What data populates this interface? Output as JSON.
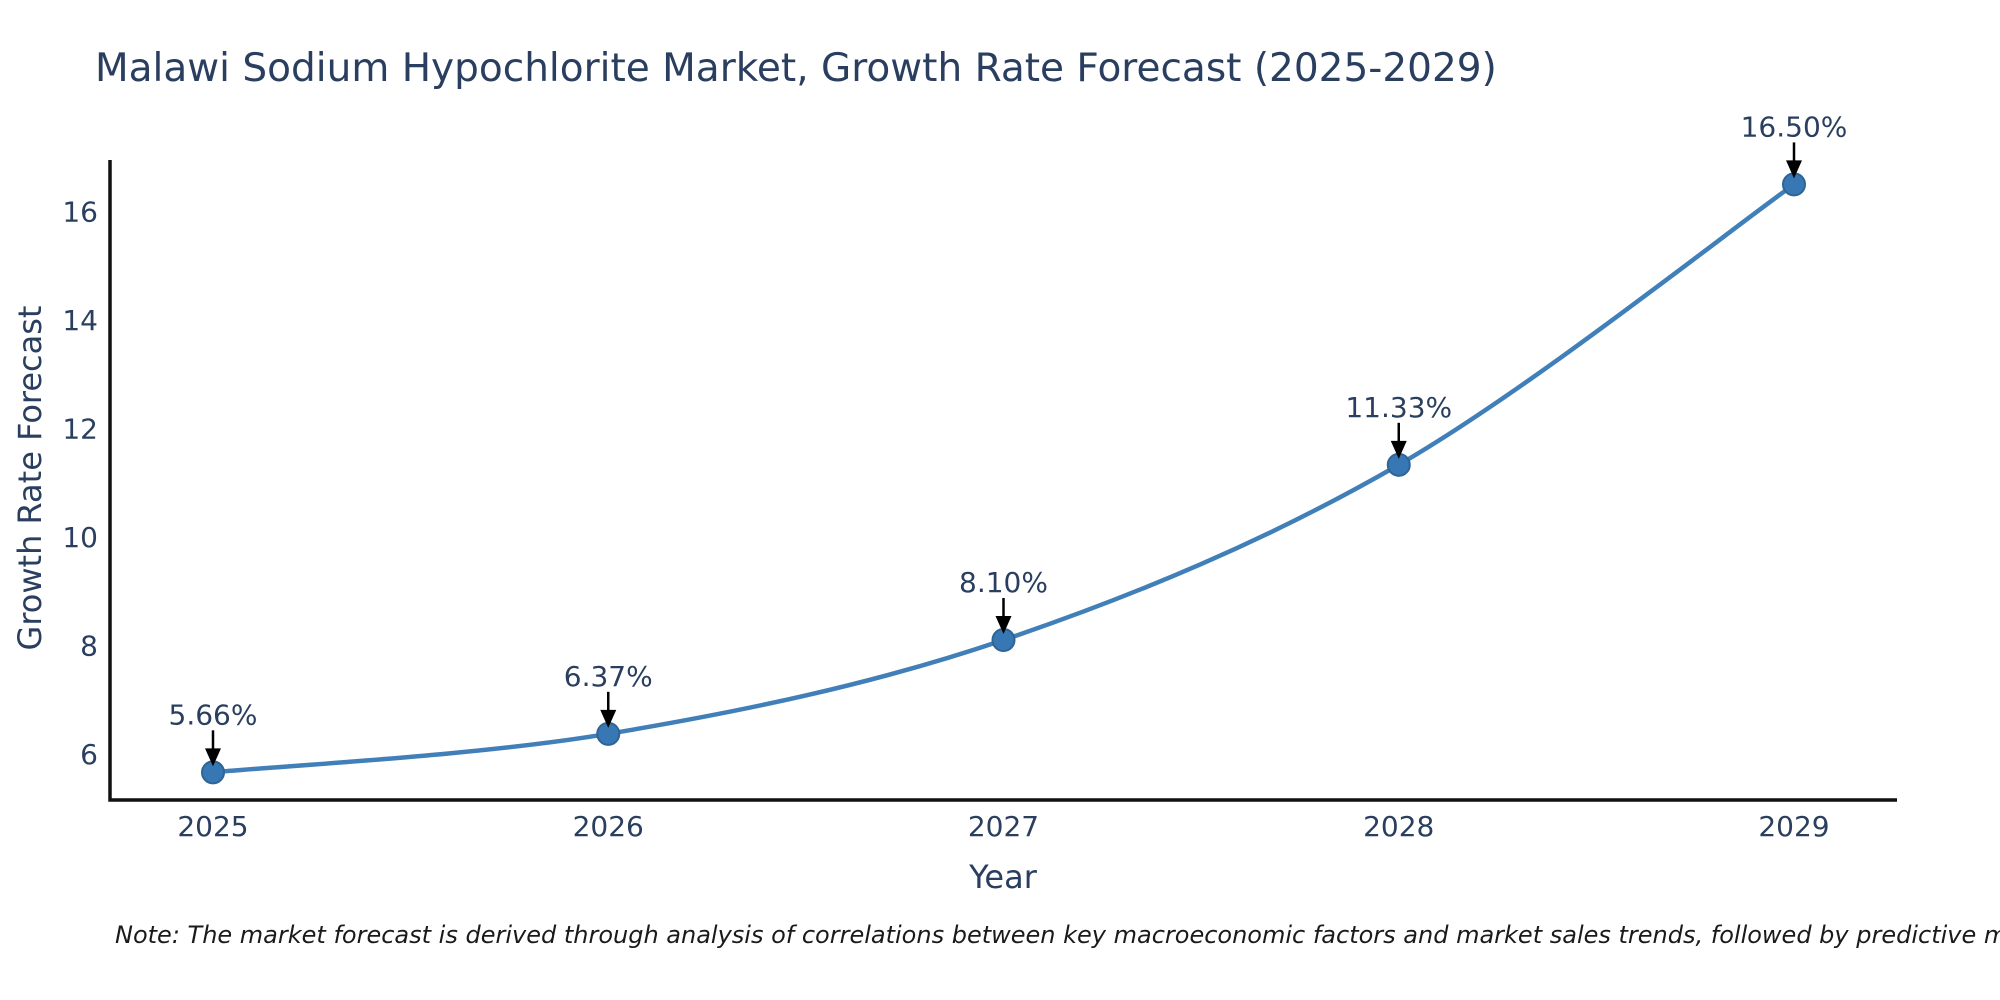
{
  "title": "Malawi Sodium Hypochlorite Market, Growth Rate Forecast (2025-2029)",
  "note": "Note: The market forecast is derived through analysis of correlations between key macroeconomic factors and market sales trends, followed by predictive modeling to project future sales.",
  "chart_data": {
    "type": "line",
    "title": "Malawi Sodium Hypochlorite Market, Growth Rate Forecast (2025-2029)",
    "categories": [
      "2025",
      "2026",
      "2027",
      "2028",
      "2029"
    ],
    "values": [
      5.66,
      6.37,
      8.1,
      11.33,
      16.5
    ],
    "point_labels": [
      "5.66%",
      "6.37%",
      "8.10%",
      "11.33%",
      "16.50%"
    ],
    "xlabel": "Year",
    "ylabel": "Growth Rate Forecast",
    "yticks": [
      6,
      8,
      10,
      12,
      14,
      16
    ],
    "ylim": [
      5.15,
      16.95
    ],
    "line_shape": "spline",
    "grid": false,
    "legend": "none",
    "annotations": "value labels with black down arrows above each point",
    "colors": {
      "line": "#417FB9",
      "marker": "#3778B4",
      "marker_edge": "#2E6496",
      "axis": "#111111",
      "text": "#2A3F5F",
      "arrow": "#000000",
      "note_text": "#1A1A1A",
      "background": "#FFFFFF"
    }
  }
}
